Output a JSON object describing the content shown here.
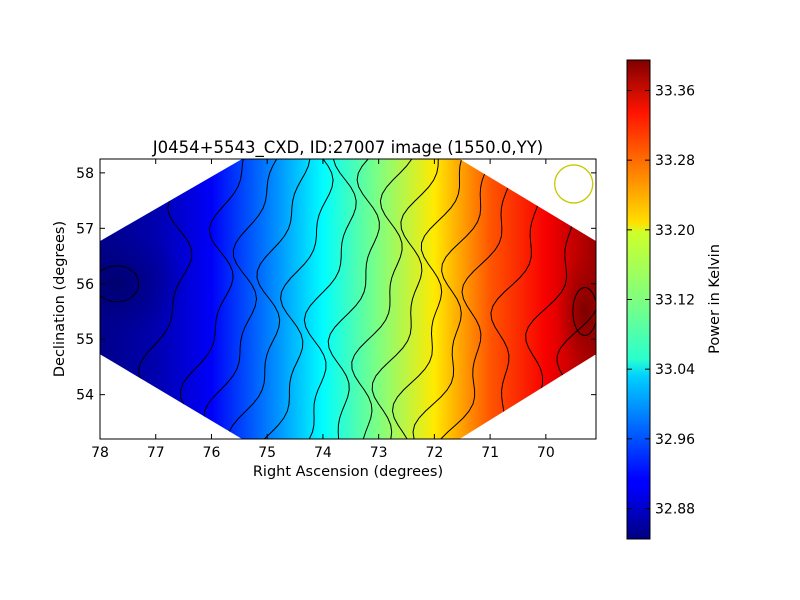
{
  "chart_data": {
    "type": "heatmap",
    "title": "J0454+5543_CXD, ID:27007 image (1550.0,YY)",
    "xlabel": "Right Ascension (degrees)",
    "ylabel": "Declination (degrees)",
    "xlim": [
      78.0,
      69.1
    ],
    "ylim": [
      53.2,
      58.25
    ],
    "x_ticks": [
      78,
      77,
      76,
      75,
      74,
      73,
      72,
      71,
      70
    ],
    "y_ticks": [
      54,
      55,
      56,
      57,
      58
    ],
    "colorbar": {
      "label": "Power in Kelvin",
      "range": [
        32.845,
        33.395
      ],
      "ticks": [
        32.88,
        32.96,
        33.04,
        33.12,
        33.2,
        33.28,
        33.36
      ],
      "colormap": "jet"
    },
    "field_footprint": {
      "shape": "hexagon",
      "vertices": [
        [
          78.0,
          56.77
        ],
        [
          75.45,
          58.25
        ],
        [
          71.55,
          58.25
        ],
        [
          69.1,
          56.77
        ],
        [
          69.1,
          54.73
        ],
        [
          71.55,
          53.2
        ],
        [
          75.45,
          53.2
        ],
        [
          78.0,
          54.73
        ]
      ]
    },
    "gradient_profile": [
      {
        "ra": 78.0,
        "value": 32.85
      },
      {
        "ra": 77.0,
        "value": 32.87
      },
      {
        "ra": 76.0,
        "value": 32.91
      },
      {
        "ra": 75.0,
        "value": 32.98
      },
      {
        "ra": 74.0,
        "value": 33.05
      },
      {
        "ra": 73.0,
        "value": 33.12
      },
      {
        "ra": 72.0,
        "value": 33.2
      },
      {
        "ra": 71.0,
        "value": 33.28
      },
      {
        "ra": 70.0,
        "value": 33.33
      },
      {
        "ra": 69.1,
        "value": 33.38
      }
    ],
    "extrema": [
      {
        "kind": "min",
        "ra": 77.7,
        "dec": 56.0,
        "value": 32.85
      },
      {
        "kind": "max",
        "ra": 69.3,
        "dec": 55.5,
        "value": 33.39
      }
    ],
    "beam": {
      "ra": 69.5,
      "dec": 57.8,
      "color": "#c8c800"
    },
    "grid": false,
    "legend": "colorbar-right"
  }
}
